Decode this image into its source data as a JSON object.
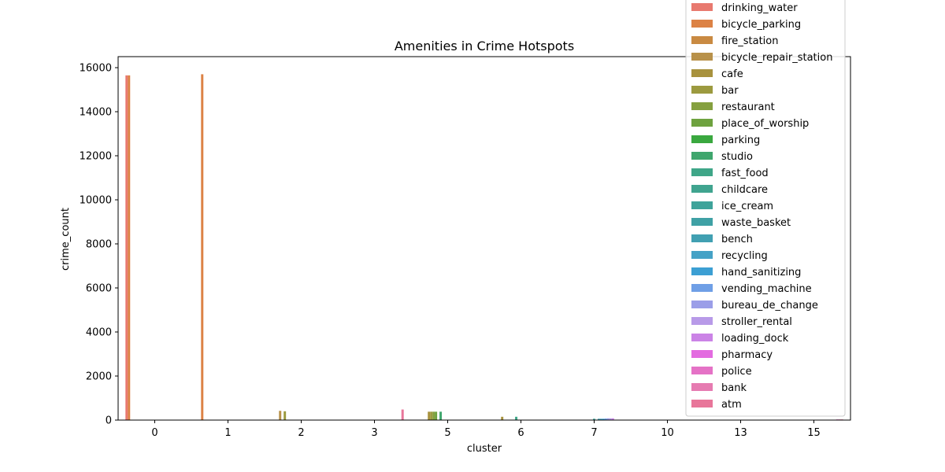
{
  "chart_data": {
    "type": "bar",
    "title": "Amenities in Crime Hotspots",
    "xlabel": "cluster",
    "ylabel": "crime_count",
    "categories": [
      "0",
      "1",
      "2",
      "3",
      "5",
      "6",
      "7",
      "10",
      "13",
      "15"
    ],
    "ylim": [
      0,
      16500
    ],
    "yticks": [
      0,
      2000,
      4000,
      6000,
      8000,
      10000,
      12000,
      14000,
      16000
    ],
    "ytick_labels": [
      "0",
      "2000",
      "4000",
      "6000",
      "8000",
      "10000",
      "12000",
      "14000",
      "16000"
    ],
    "legend_position": "upper-right",
    "grid": false,
    "series": [
      {
        "name": "drinking_water",
        "color": "#e8796f",
        "values": [
          15650,
          0,
          0,
          0,
          0,
          0,
          0,
          0,
          0,
          0
        ]
      },
      {
        "name": "bicycle_parking",
        "color": "#dc8245",
        "values": [
          15650,
          15700,
          0,
          0,
          0,
          0,
          0,
          0,
          0,
          0
        ]
      },
      {
        "name": "fire_station",
        "color": "#c98a42",
        "values": [
          0,
          0,
          0,
          0,
          0,
          0,
          0,
          0,
          0,
          0
        ]
      },
      {
        "name": "bicycle_repair_station",
        "color": "#b8914a",
        "values": [
          0,
          0,
          420,
          0,
          0,
          0,
          0,
          0,
          0,
          0
        ]
      },
      {
        "name": "cafe",
        "color": "#a8923e",
        "values": [
          0,
          0,
          0,
          0,
          380,
          150,
          0,
          0,
          0,
          0
        ]
      },
      {
        "name": "bar",
        "color": "#9c9a3f",
        "values": [
          0,
          0,
          400,
          0,
          380,
          0,
          0,
          0,
          0,
          0
        ]
      },
      {
        "name": "restaurant",
        "color": "#85a03f",
        "values": [
          0,
          0,
          0,
          0,
          380,
          0,
          0,
          0,
          0,
          0
        ]
      },
      {
        "name": "place_of_worship",
        "color": "#6ea23f",
        "values": [
          0,
          0,
          0,
          0,
          380,
          0,
          0,
          0,
          0,
          0
        ]
      },
      {
        "name": "parking",
        "color": "#3aa83f",
        "values": [
          0,
          0,
          0,
          0,
          0,
          0,
          0,
          0,
          0,
          0
        ]
      },
      {
        "name": "studio",
        "color": "#3fa66d",
        "values": [
          0,
          0,
          0,
          0,
          380,
          0,
          0,
          0,
          0,
          0
        ]
      },
      {
        "name": "fast_food",
        "color": "#3fa688",
        "values": [
          0,
          0,
          0,
          0,
          0,
          150,
          0,
          0,
          0,
          0
        ]
      },
      {
        "name": "childcare",
        "color": "#40a48f",
        "values": [
          0,
          0,
          0,
          0,
          0,
          0,
          0,
          0,
          0,
          0
        ]
      },
      {
        "name": "ice_cream",
        "color": "#3ea39a",
        "values": [
          0,
          0,
          0,
          0,
          0,
          0,
          60,
          0,
          0,
          0
        ]
      },
      {
        "name": "waste_basket",
        "color": "#3fa1a5",
        "values": [
          0,
          0,
          0,
          0,
          0,
          0,
          0,
          0,
          0,
          0
        ]
      },
      {
        "name": "bench",
        "color": "#41a0b2",
        "values": [
          0,
          0,
          0,
          0,
          0,
          0,
          60,
          0,
          0,
          0
        ]
      },
      {
        "name": "recycling",
        "color": "#45a2c6",
        "values": [
          0,
          0,
          0,
          0,
          0,
          0,
          60,
          0,
          0,
          0
        ]
      },
      {
        "name": "hand_sanitizing",
        "color": "#3c9fd3",
        "values": [
          0,
          0,
          0,
          0,
          0,
          0,
          60,
          0,
          0,
          0
        ]
      },
      {
        "name": "vending_machine",
        "color": "#6f9fe6",
        "values": [
          0,
          0,
          0,
          0,
          0,
          0,
          70,
          0,
          0,
          0
        ]
      },
      {
        "name": "bureau_de_change",
        "color": "#9b9ee8",
        "values": [
          0,
          0,
          0,
          0,
          0,
          0,
          80,
          0,
          0,
          0
        ]
      },
      {
        "name": "stroller_rental",
        "color": "#b89ae8",
        "values": [
          0,
          0,
          0,
          0,
          0,
          0,
          80,
          0,
          0,
          0
        ]
      },
      {
        "name": "loading_dock",
        "color": "#cb83e6",
        "values": [
          0,
          0,
          0,
          0,
          0,
          0,
          80,
          0,
          0,
          0
        ]
      },
      {
        "name": "pharmacy",
        "color": "#e36be0",
        "values": [
          0,
          0,
          0,
          0,
          0,
          0,
          0,
          0,
          0,
          0
        ]
      },
      {
        "name": "police",
        "color": "#e572c6",
        "values": [
          0,
          0,
          0,
          0,
          0,
          0,
          0,
          0,
          0,
          30
        ]
      },
      {
        "name": "bank",
        "color": "#e67bb1",
        "values": [
          0,
          0,
          0,
          0,
          0,
          0,
          0,
          0,
          0,
          30
        ]
      },
      {
        "name": "atm",
        "color": "#e8769a",
        "values": [
          0,
          0,
          0,
          480,
          0,
          0,
          0,
          0,
          0,
          30
        ]
      }
    ]
  }
}
